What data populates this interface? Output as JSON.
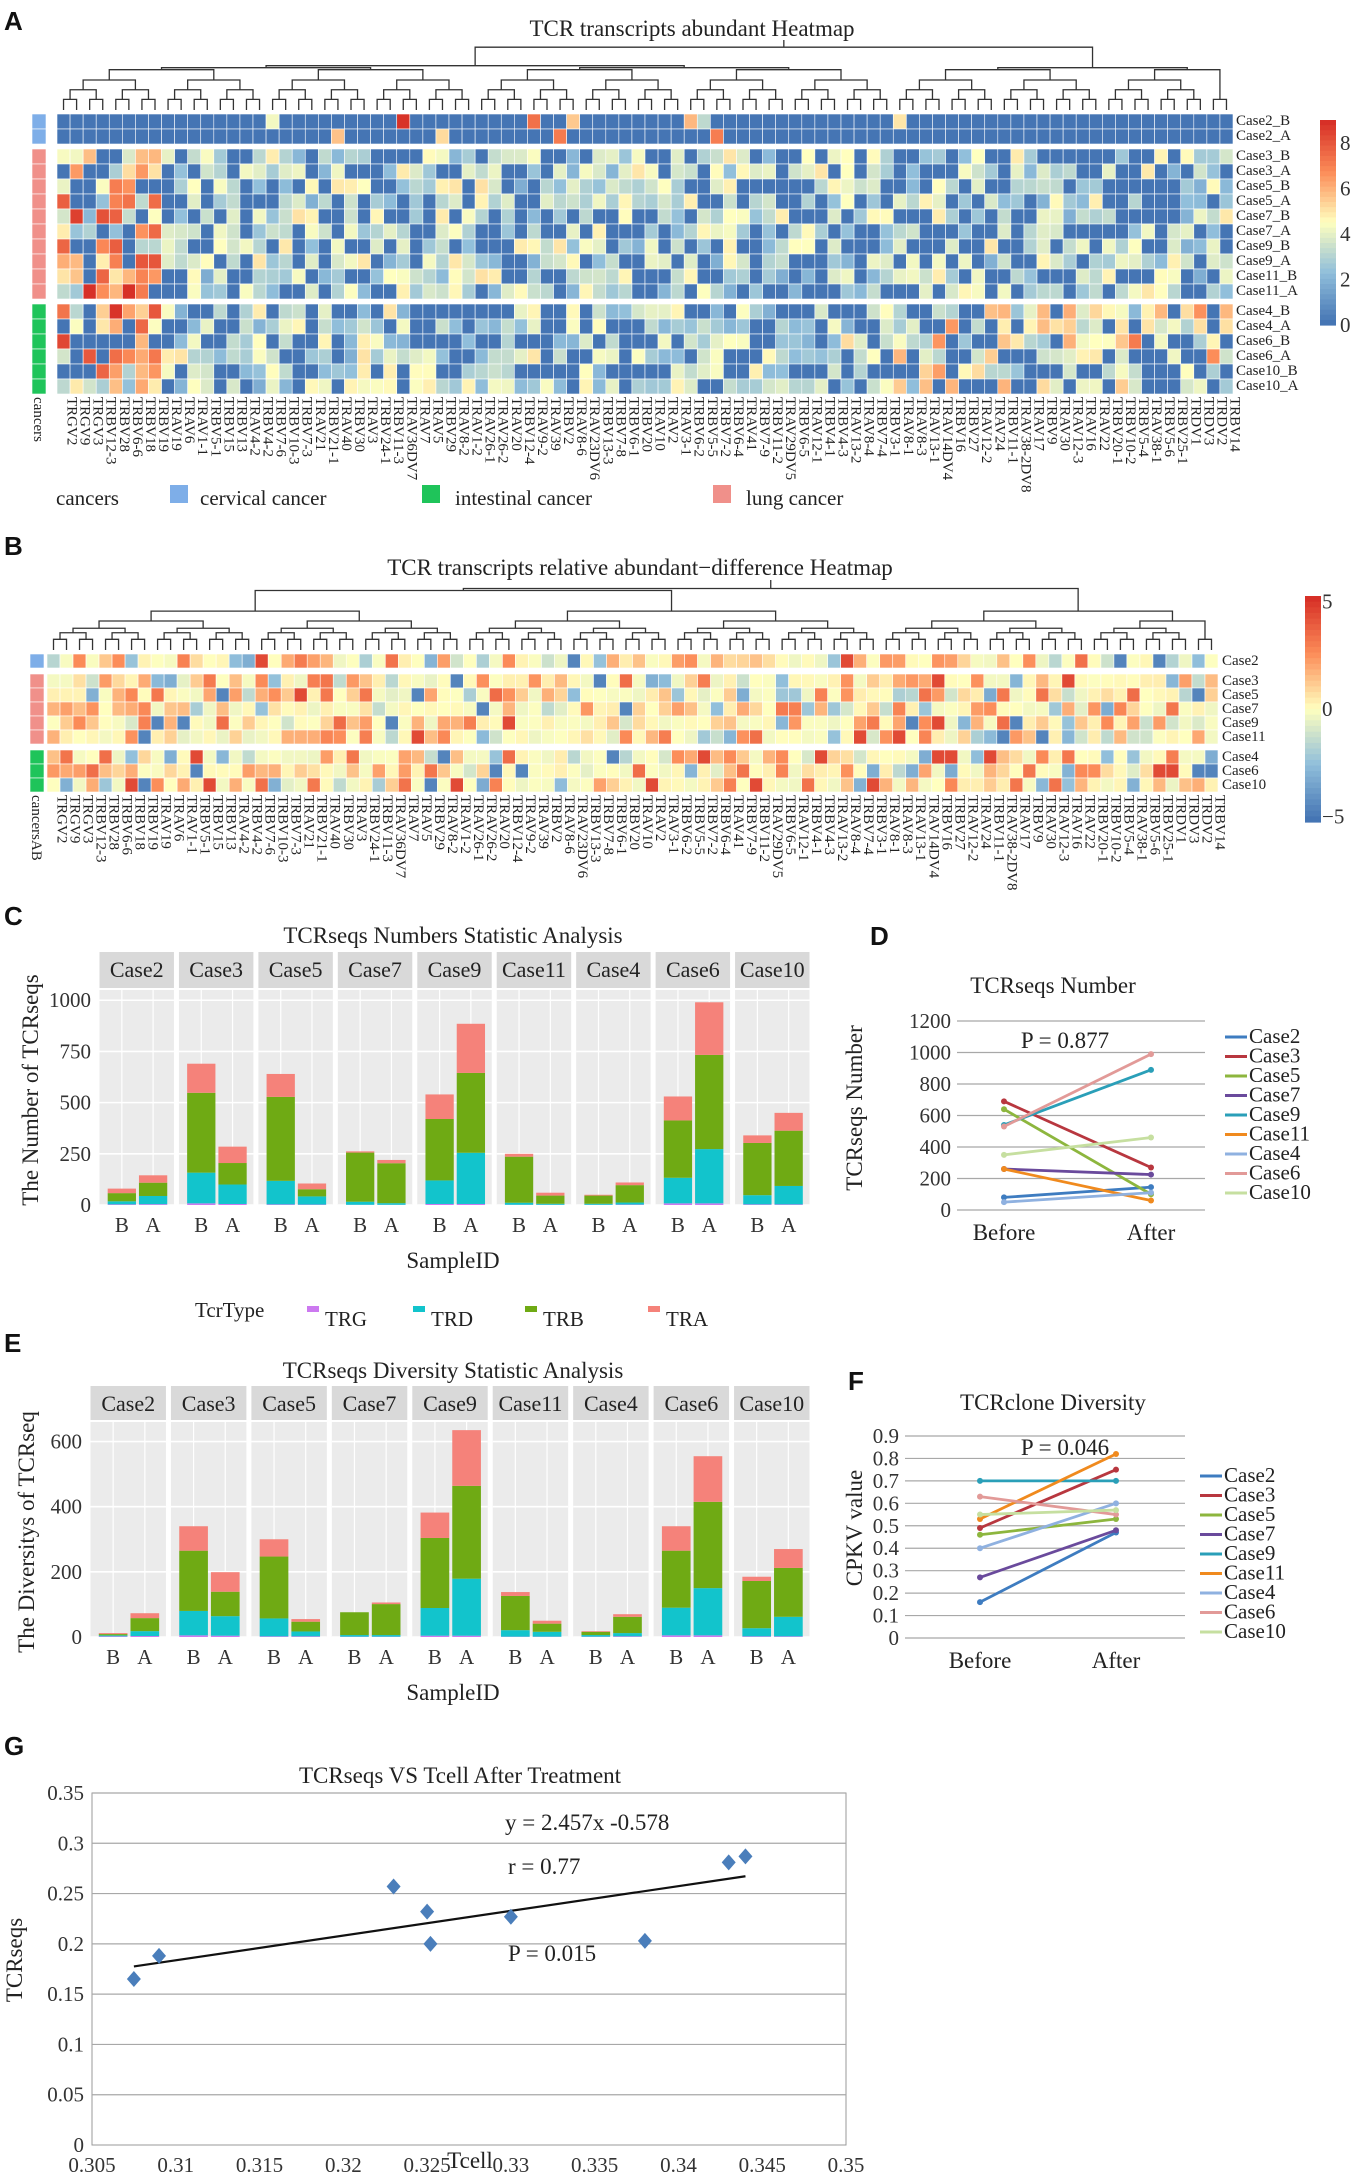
{
  "panels": {
    "A": {
      "label": "A",
      "title": "TCR transcripts abundant Heatmap",
      "rows": [
        "Case2_B",
        "Case2_A",
        "Case3_B",
        "Case3_A",
        "Case5_B",
        "Case5_A",
        "Case7_B",
        "Case7_A",
        "Case9_B",
        "Case9_A",
        "Case11_B",
        "Case11_A",
        "Case4_B",
        "Case4_A",
        "Case6_B",
        "Case6_A",
        "Case10_B",
        "Case10_A"
      ],
      "row_groups": [
        "cervical",
        "cervical",
        "lung",
        "lung",
        "lung",
        "lung",
        "lung",
        "lung",
        "lung",
        "lung",
        "lung",
        "lung",
        "intestinal",
        "intestinal",
        "intestinal",
        "intestinal",
        "intestinal",
        "intestinal"
      ],
      "columns": [
        "TRGV2",
        "TRGV9",
        "TRGV3",
        "TRBV12-3",
        "TRBV28",
        "TRBV6-6",
        "TRBV18",
        "TRBV19",
        "TRAV19",
        "TRAV6",
        "TRAV1-1",
        "TRBV5-1",
        "TRBV15",
        "TRBV13",
        "TRAV4-2",
        "TRBV4-2",
        "TRBV7-6",
        "TRBV10-3",
        "TRBV7-3",
        "TRAV21",
        "TRBV21-1",
        "TRAV40",
        "TRBV30",
        "TRAV3",
        "TRBV24-1",
        "TRBV11-3",
        "TRAV36DV7",
        "TRAV7",
        "TRAV5",
        "TRBV29",
        "TRAV8-2",
        "TRAV1-2",
        "TRAV26-1",
        "TRAV26-2",
        "TRAV20",
        "TRBV12-4",
        "TRAV9-2",
        "TRAV39",
        "TRBV2",
        "TRAV8-6",
        "TRAV23DV6",
        "TRBV13-3",
        "TRBV7-8",
        "TRBV6-1",
        "TRBV20",
        "TRAV10",
        "TRAV2",
        "TRAV3-1",
        "TRBV6-2",
        "TRBV5-5",
        "TRBV7-2",
        "TRBV6-4",
        "TRAV41",
        "TRBV7-9",
        "TRBV11-2",
        "TRAV29DV5",
        "TRBV6-5",
        "TRAV12-1",
        "TRBV4-1",
        "TRBV4-3",
        "TRAV13-2",
        "TRAV8-4",
        "TRBV7-4",
        "TRBV3-1",
        "TRAV8-1",
        "TRAV8-3",
        "TRAV13-1",
        "TRAV14DV4",
        "TRBV16",
        "TRBV27",
        "TRAV12-2",
        "TRAV24",
        "TRBV11-1",
        "TRAV38-2DV8",
        "TRAV17",
        "TRBV9",
        "TRAV30",
        "TRAV12-3",
        "TRAV16",
        "TRAV22",
        "TRBV20-1",
        "TRBV10-2",
        "TRBV5-4",
        "TRAV38-1",
        "TRBV5-6",
        "TRBV25-1",
        "TRDV1",
        "TRDV3",
        "TRDV2",
        "TRBV14"
      ],
      "colorbar_ticks": [
        "8",
        "6",
        "4",
        "2",
        "0"
      ],
      "row_axis_label": "cancers",
      "legend_title": "cancers",
      "legend_items": [
        {
          "label": "cervical cancer",
          "color": "#7EAEE8"
        },
        {
          "label": "intestinal cancer",
          "color": "#1FC45A"
        },
        {
          "label": "lung cancer",
          "color": "#F0908A"
        }
      ]
    },
    "B": {
      "label": "B",
      "title": "TCR transcripts relative abundant−difference Heatmap",
      "rows": [
        "Case2",
        "Case3",
        "Case5",
        "Case7",
        "Case9",
        "Case11",
        "Case4",
        "Case6",
        "Case10"
      ],
      "row_groups": [
        "cervical",
        "lung",
        "lung",
        "lung",
        "lung",
        "lung",
        "intestinal",
        "intestinal",
        "intestinal"
      ],
      "colorbar_ticks": [
        "5",
        "0",
        "−5"
      ],
      "row_axis_label": "cancersAB"
    },
    "C": {
      "label": "C",
      "title": "TCRseqs Numbers Statistic Analysis",
      "ylabel": "The Number of TCRseqs",
      "xlabel": "SampleID",
      "yticks": [
        "0",
        "250",
        "500",
        "750",
        "1000"
      ],
      "legend_title": "TcrType",
      "legend_items": [
        {
          "label": "TRG",
          "color": "#CC79F0"
        },
        {
          "label": "TRD",
          "color": "#12C4CC"
        },
        {
          "label": "TRB",
          "color": "#6FAA14"
        },
        {
          "label": "TRA",
          "color": "#F5827A"
        }
      ]
    },
    "D": {
      "label": "D",
      "title": "TCRseqs Number",
      "ylabel": "TCRseqs Number",
      "pvalue": "P = 0.877",
      "xticks": [
        "Before",
        "After"
      ],
      "yticks": [
        "0",
        "200",
        "400",
        "600",
        "800",
        "1000",
        "1200"
      ]
    },
    "E": {
      "label": "E",
      "title": "TCRseqs Diversity Statistic Analysis",
      "ylabel": "The Diversitys of TCRseq",
      "xlabel": "SampleID",
      "yticks": [
        "0",
        "200",
        "400",
        "600"
      ]
    },
    "F": {
      "label": "F",
      "title": "TCRclone Diversity",
      "ylabel": "CPKV value",
      "pvalue": "P = 0.046",
      "xticks": [
        "Before",
        "After"
      ],
      "yticks": [
        "0",
        "0.1",
        "0.2",
        "0.3",
        "0.4",
        "0.5",
        "0.6",
        "0.7",
        "0.8",
        "0.9"
      ]
    },
    "G": {
      "label": "G",
      "title": "TCRseqs VS Tcell After Treatment",
      "xlabel": "Tcell",
      "ylabel": "TCRseqs",
      "equation": "y = 2.457x -0.578",
      "r": "r = 0.77",
      "pvalue": "P = 0.015",
      "xticks": [
        "0.305",
        "0.31",
        "0.315",
        "0.32",
        "0.325",
        "0.33",
        "0.335",
        "0.34",
        "0.345",
        "0.35"
      ],
      "yticks": [
        "0",
        "0.05",
        "0.1",
        "0.15",
        "0.2",
        "0.25",
        "0.3",
        "0.35"
      ]
    }
  },
  "chart_data": [
    {
      "type": "bar",
      "id": "C",
      "title": "TCRseqs Numbers Statistic Analysis",
      "xlabel": "SampleID",
      "ylabel": "The Number of TCRseqs",
      "ylim": [
        0,
        1050
      ],
      "facets": [
        "Case2",
        "Case3",
        "Case5",
        "Case7",
        "Case9",
        "Case11",
        "Case4",
        "Case6",
        "Case10"
      ],
      "categories": [
        "B",
        "A"
      ],
      "series": [
        {
          "name": "TRG",
          "values": [
            [
              3,
              4
            ],
            [
              8,
              5
            ],
            [
              3,
              2
            ],
            [
              1,
              1
            ],
            [
              5,
              5
            ],
            [
              1,
              1
            ],
            [
              1,
              2
            ],
            [
              8,
              8
            ],
            [
              3,
              3
            ]
          ]
        },
        {
          "name": "TRD",
          "values": [
            [
              15,
              40
            ],
            [
              150,
              95
            ],
            [
              115,
              40
            ],
            [
              15,
              8
            ],
            [
              115,
              250
            ],
            [
              10,
              5
            ],
            [
              5,
              10
            ],
            [
              125,
              265
            ],
            [
              45,
              90
            ]
          ]
        },
        {
          "name": "TRB",
          "values": [
            [
              40,
              65
            ],
            [
              390,
              105
            ],
            [
              410,
              35
            ],
            [
              240,
              195
            ],
            [
              300,
              390
            ],
            [
              225,
              40
            ],
            [
              40,
              85
            ],
            [
              280,
              460
            ],
            [
              255,
              270
            ]
          ]
        },
        {
          "name": "TRA",
          "values": [
            [
              22,
              36
            ],
            [
              142,
              80
            ],
            [
              112,
              28
            ],
            [
              6,
              16
            ],
            [
              120,
              240
            ],
            [
              14,
              14
            ],
            [
              4,
              13
            ],
            [
              117,
              257
            ],
            [
              37,
              87
            ]
          ]
        }
      ]
    },
    {
      "type": "line",
      "id": "D",
      "title": "TCRseqs Number",
      "ylabel": "TCRseqs Number",
      "x": [
        "Before",
        "After"
      ],
      "ylim": [
        0,
        1200
      ],
      "series": [
        {
          "name": "Case2",
          "values": [
            80,
            145
          ],
          "color": "#3E7CC0"
        },
        {
          "name": "Case3",
          "values": [
            690,
            270
          ],
          "color": "#B8373F"
        },
        {
          "name": "Case5",
          "values": [
            640,
            100
          ],
          "color": "#8DB63E"
        },
        {
          "name": "Case7",
          "values": [
            260,
            225
          ],
          "color": "#6A4A9C"
        },
        {
          "name": "Case9",
          "values": [
            540,
            890
          ],
          "color": "#2A9FB8"
        },
        {
          "name": "Case11",
          "values": [
            260,
            60
          ],
          "color": "#F08A1E"
        },
        {
          "name": "Case4",
          "values": [
            50,
            110
          ],
          "color": "#8FB1E0"
        },
        {
          "name": "Case6",
          "values": [
            530,
            990
          ],
          "color": "#E29A98"
        },
        {
          "name": "Case10",
          "values": [
            350,
            460
          ],
          "color": "#C6DFA0"
        }
      ]
    },
    {
      "type": "bar",
      "id": "E",
      "title": "TCRseqs Diversity Statistic Analysis",
      "xlabel": "SampleID",
      "ylabel": "The Diversitys of TCRseq",
      "ylim": [
        0,
        660
      ],
      "facets": [
        "Case2",
        "Case3",
        "Case5",
        "Case7",
        "Case9",
        "Case11",
        "Case4",
        "Case6",
        "Case10"
      ],
      "categories": [
        "B",
        "A"
      ],
      "series": [
        {
          "name": "TRG",
          "values": [
            [
              2,
              3
            ],
            [
              5,
              4
            ],
            [
              2,
              2
            ],
            [
              1,
              1
            ],
            [
              4,
              4
            ],
            [
              1,
              1
            ],
            [
              1,
              2
            ],
            [
              5,
              5
            ],
            [
              2,
              2
            ]
          ]
        },
        {
          "name": "TRD",
          "values": [
            [
              3,
              15
            ],
            [
              75,
              60
            ],
            [
              55,
              15
            ],
            [
              5,
              5
            ],
            [
              85,
              175
            ],
            [
              20,
              15
            ],
            [
              5,
              10
            ],
            [
              85,
              145
            ],
            [
              25,
              60
            ]
          ]
        },
        {
          "name": "TRB",
          "values": [
            [
              4,
              40
            ],
            [
              185,
              75
            ],
            [
              190,
              30
            ],
            [
              70,
              95
            ],
            [
              215,
              285
            ],
            [
              105,
              25
            ],
            [
              10,
              50
            ],
            [
              175,
              265
            ],
            [
              145,
              150
            ]
          ]
        },
        {
          "name": "TRA",
          "values": [
            [
              3,
              15
            ],
            [
              75,
              60
            ],
            [
              53,
              8
            ],
            [
              0,
              5
            ],
            [
              78,
              171
            ],
            [
              12,
              9
            ],
            [
              2,
              8
            ],
            [
              75,
              140
            ],
            [
              13,
              58
            ]
          ]
        }
      ]
    },
    {
      "type": "line",
      "id": "F",
      "title": "TCRclone Diversity",
      "ylabel": "CPKV value",
      "x": [
        "Before",
        "After"
      ],
      "ylim": [
        0,
        0.9
      ],
      "series": [
        {
          "name": "Case2",
          "values": [
            0.16,
            0.47
          ],
          "color": "#3E7CC0"
        },
        {
          "name": "Case3",
          "values": [
            0.49,
            0.75
          ],
          "color": "#B8373F"
        },
        {
          "name": "Case5",
          "values": [
            0.46,
            0.53
          ],
          "color": "#8DB63E"
        },
        {
          "name": "Case7",
          "values": [
            0.27,
            0.48
          ],
          "color": "#6A4A9C"
        },
        {
          "name": "Case9",
          "values": [
            0.7,
            0.7
          ],
          "color": "#2A9FB8"
        },
        {
          "name": "Case11",
          "values": [
            0.53,
            0.82
          ],
          "color": "#F08A1E"
        },
        {
          "name": "Case4",
          "values": [
            0.4,
            0.6
          ],
          "color": "#8FB1E0"
        },
        {
          "name": "Case6",
          "values": [
            0.63,
            0.55
          ],
          "color": "#E29A98"
        },
        {
          "name": "Case10",
          "values": [
            0.55,
            0.57
          ],
          "color": "#C6DFA0"
        }
      ]
    },
    {
      "type": "scatter",
      "id": "G",
      "title": "TCRseqs VS Tcell After Treatment",
      "xlabel": "Tcell",
      "ylabel": "TCRseqs",
      "xlim": [
        0.305,
        0.35
      ],
      "ylim": [
        0,
        0.35
      ],
      "points": [
        [
          0.3075,
          0.165
        ],
        [
          0.309,
          0.188
        ],
        [
          0.323,
          0.257
        ],
        [
          0.325,
          0.232
        ],
        [
          0.3252,
          0.2
        ],
        [
          0.33,
          0.227
        ],
        [
          0.338,
          0.203
        ],
        [
          0.343,
          0.281
        ],
        [
          0.344,
          0.287
        ]
      ],
      "trendline": {
        "slope": 2.457,
        "intercept": -0.578,
        "x_range": [
          0.3075,
          0.344
        ]
      }
    }
  ]
}
